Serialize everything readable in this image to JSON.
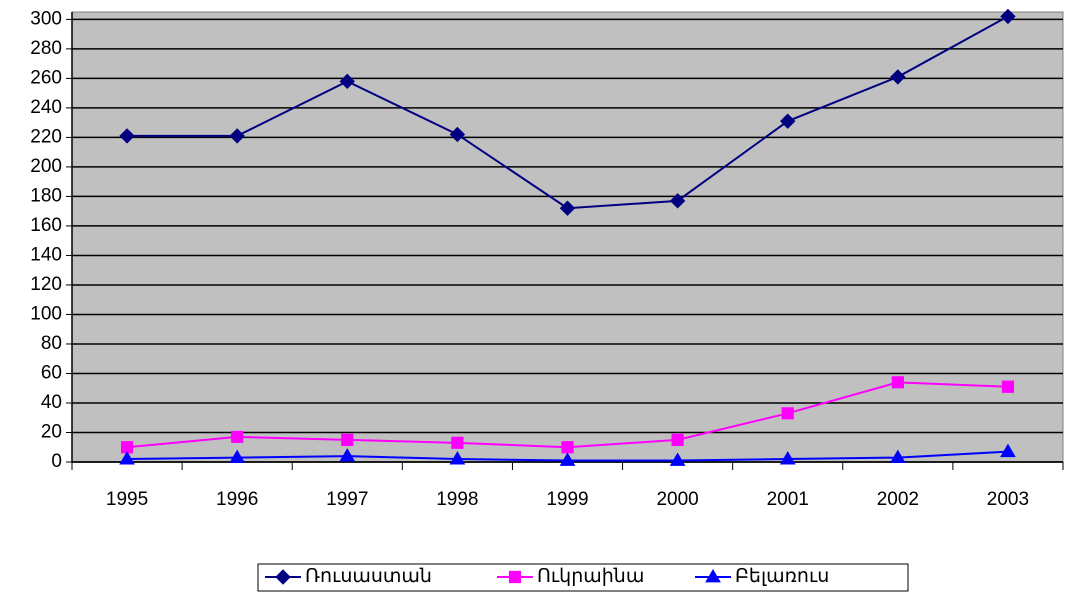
{
  "chart_data": {
    "type": "line",
    "categories": [
      "1995",
      "1996",
      "1997",
      "1998",
      "1999",
      "2000",
      "2001",
      "2002",
      "2003"
    ],
    "series": [
      {
        "name": "Ռուսաստան",
        "color": "#000080",
        "marker": "diamond",
        "values": [
          221,
          221,
          258,
          222,
          172,
          177,
          231,
          261,
          302
        ]
      },
      {
        "name": "Ուկրաինա",
        "color": "#ff00ff",
        "marker": "square",
        "values": [
          10,
          17,
          15,
          13,
          10,
          15,
          33,
          54,
          51
        ]
      },
      {
        "name": "Բելառուս",
        "color": "#0000ff",
        "marker": "triangle",
        "values": [
          2,
          3,
          4,
          2,
          1,
          1,
          2,
          3,
          7
        ]
      }
    ],
    "ylim": [
      0,
      305
    ],
    "yticks": [
      0,
      20,
      40,
      60,
      80,
      100,
      120,
      140,
      160,
      180,
      200,
      220,
      240,
      260,
      280,
      300
    ],
    "grid": true,
    "legend": "bottom",
    "plot_background": "#c0c0c0"
  }
}
